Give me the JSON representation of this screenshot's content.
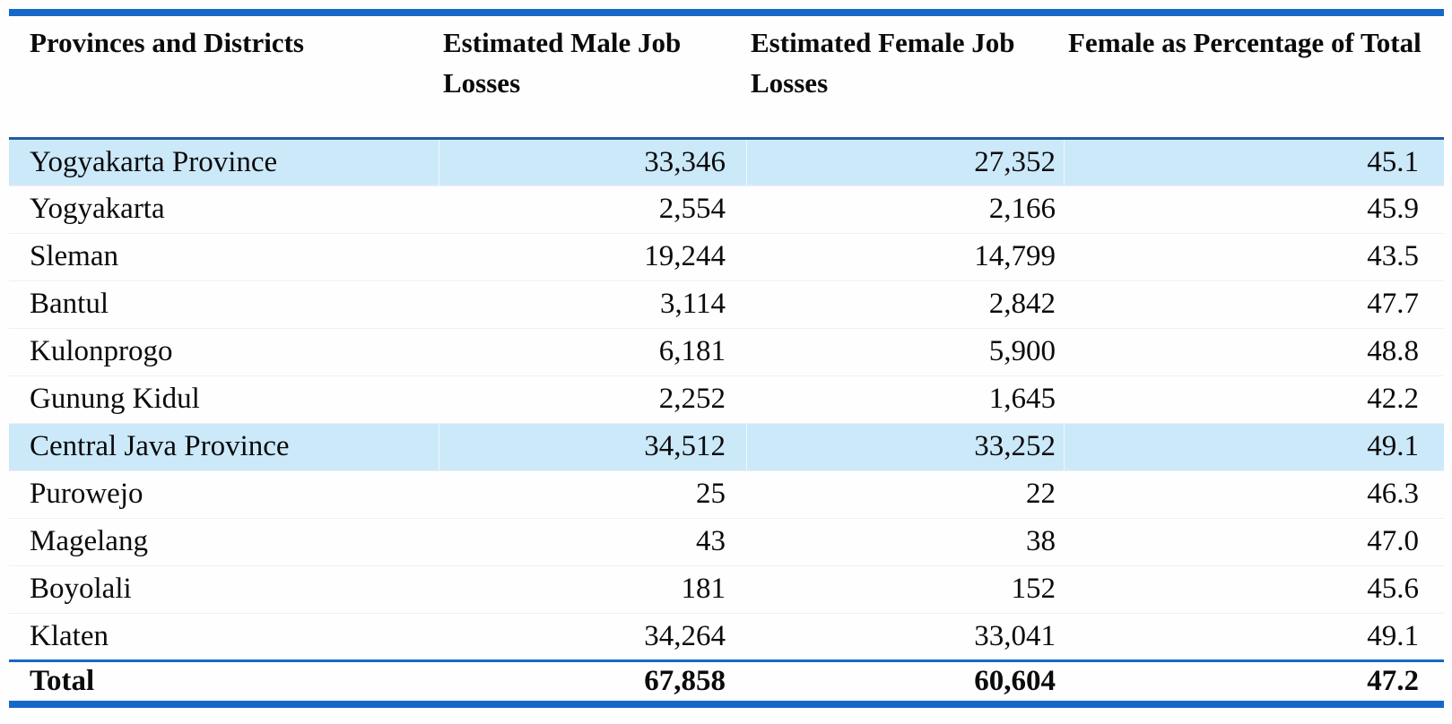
{
  "colors": {
    "accent_blue": "#1668c8",
    "header_underline_blue": "#1e5c9b",
    "row_highlight_blue": "#cce9fa",
    "text": "#0b0b0b"
  },
  "table": {
    "columns": [
      "Provinces and Districts",
      "Estimated Male Job Losses",
      "Estimated Female Job Losses",
      "Female as Percentage of Total"
    ],
    "rows": [
      {
        "name": "Yogyakarta Province",
        "male": "33,346",
        "female": "27,352",
        "pct": "45.1",
        "highlight": true,
        "total": false
      },
      {
        "name": "Yogyakarta",
        "male": "2,554",
        "female": "2,166",
        "pct": "45.9",
        "highlight": false,
        "total": false
      },
      {
        "name": "Sleman",
        "male": "19,244",
        "female": "14,799",
        "pct": "43.5",
        "highlight": false,
        "total": false
      },
      {
        "name": "Bantul",
        "male": "3,114",
        "female": "2,842",
        "pct": "47.7",
        "highlight": false,
        "total": false
      },
      {
        "name": "Kulonprogo",
        "male": "6,181",
        "female": "5,900",
        "pct": "48.8",
        "highlight": false,
        "total": false
      },
      {
        "name": "Gunung Kidul",
        "male": "2,252",
        "female": "1,645",
        "pct": "42.2",
        "highlight": false,
        "total": false
      },
      {
        "name": "Central Java Province",
        "male": "34,512",
        "female": "33,252",
        "pct": "49.1",
        "highlight": true,
        "total": false
      },
      {
        "name": "Purowejo",
        "male": "25",
        "female": "22",
        "pct": "46.3",
        "highlight": false,
        "total": false
      },
      {
        "name": "Magelang",
        "male": "43",
        "female": "38",
        "pct": "47.0",
        "highlight": false,
        "total": false
      },
      {
        "name": "Boyolali",
        "male": "181",
        "female": "152",
        "pct": "45.6",
        "highlight": false,
        "total": false
      },
      {
        "name": "Klaten",
        "male": "34,264",
        "female": "33,041",
        "pct": "49.1",
        "highlight": false,
        "total": false
      },
      {
        "name": "Total",
        "male": "67,858",
        "female": "60,604",
        "pct": "47.2",
        "highlight": false,
        "total": true
      }
    ]
  },
  "chart_data": {
    "type": "table",
    "title": "",
    "columns": [
      "Provinces and Districts",
      "Estimated Male Job Losses",
      "Estimated Female Job Losses",
      "Female as Percentage of Total"
    ],
    "rows": [
      [
        "Yogyakarta Province",
        33346,
        27352,
        45.1
      ],
      [
        "Yogyakarta",
        2554,
        2166,
        45.9
      ],
      [
        "Sleman",
        19244,
        14799,
        43.5
      ],
      [
        "Bantul",
        3114,
        2842,
        47.7
      ],
      [
        "Kulonprogo",
        6181,
        5900,
        48.8
      ],
      [
        "Gunung Kidul",
        2252,
        1645,
        42.2
      ],
      [
        "Central Java Province",
        34512,
        33252,
        49.1
      ],
      [
        "Purowejo",
        25,
        22,
        46.3
      ],
      [
        "Magelang",
        43,
        38,
        47.0
      ],
      [
        "Boyolali",
        181,
        152,
        45.6
      ],
      [
        "Klaten",
        34264,
        33041,
        49.1
      ],
      [
        "Total",
        67858,
        60604,
        47.2
      ]
    ],
    "highlighted_rows": [
      "Yogyakarta Province",
      "Central Java Province"
    ],
    "bold_rows": [
      "Total"
    ]
  }
}
